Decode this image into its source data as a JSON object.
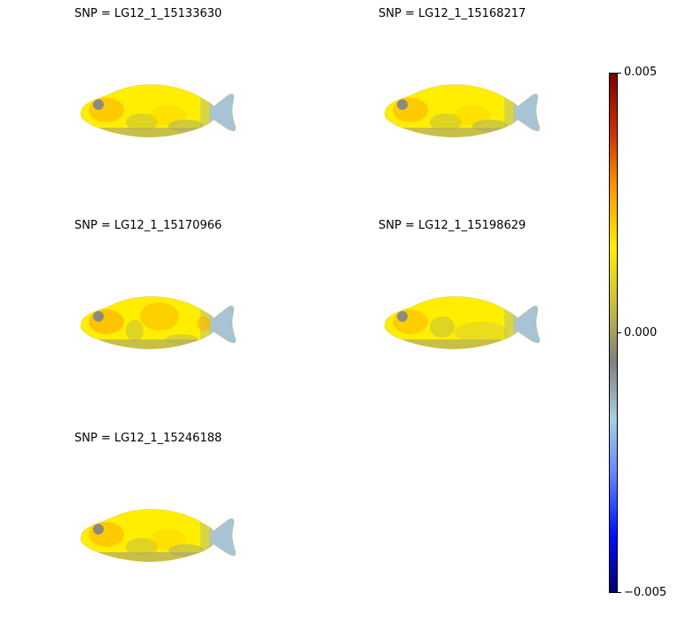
{
  "chart_data": {
    "type": "heatmap",
    "description_free": true,
    "panels": [
      {
        "title": "SNP = LG12_1_15133630",
        "variant": "a"
      },
      {
        "title": "SNP = LG12_1_15168217",
        "variant": "a"
      },
      {
        "title": "SNP = LG12_1_15170966",
        "variant": "b"
      },
      {
        "title": "SNP = LG12_1_15198629",
        "variant": "c"
      },
      {
        "title": "SNP = LG12_1_15246188",
        "variant": "a"
      }
    ],
    "colorbar": {
      "ticks": [
        "0.005",
        "0.000",
        "−0.005"
      ],
      "values": [
        0.005,
        0.0,
        -0.005
      ],
      "range": [
        -0.005,
        0.005
      ],
      "colors": [
        "#7a0000",
        "#c83000",
        "#ff9a00",
        "#ffee00",
        "#c8c040",
        "#808080",
        "#a8d0e0",
        "#6080ff",
        "#0010ff",
        "#00006e"
      ]
    }
  }
}
